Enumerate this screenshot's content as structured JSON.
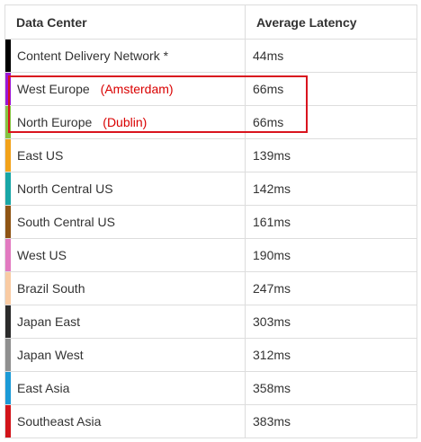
{
  "table": {
    "headers": {
      "center": "Data Center",
      "latency": "Average Latency"
    },
    "rows": [
      {
        "name": "Content Delivery Network *",
        "city": "",
        "latency": "44ms",
        "color": "#000000"
      },
      {
        "name": "West Europe",
        "city": "(Amsterdam)",
        "latency": "66ms",
        "color": "#9b16d6"
      },
      {
        "name": "North Europe",
        "city": "(Dublin)",
        "latency": "66ms",
        "color": "#86c340"
      },
      {
        "name": "East US",
        "city": "",
        "latency": "139ms",
        "color": "#f2a21a"
      },
      {
        "name": "North Central US",
        "city": "",
        "latency": "142ms",
        "color": "#18a6a6"
      },
      {
        "name": "South Central US",
        "city": "",
        "latency": "161ms",
        "color": "#8e5414"
      },
      {
        "name": "West US",
        "city": "",
        "latency": "190ms",
        "color": "#e27ac0"
      },
      {
        "name": "Brazil South",
        "city": "",
        "latency": "247ms",
        "color": "#f9cba3"
      },
      {
        "name": "Japan East",
        "city": "",
        "latency": "303ms",
        "color": "#2b2b2b"
      },
      {
        "name": "Japan West",
        "city": "",
        "latency": "312ms",
        "color": "#8f8f8f"
      },
      {
        "name": "East Asia",
        "city": "",
        "latency": "358ms",
        "color": "#1b9ad6"
      },
      {
        "name": "Southeast Asia",
        "city": "",
        "latency": "383ms",
        "color": "#d2141a"
      }
    ]
  },
  "highlight": {
    "color": "#d9141e"
  }
}
